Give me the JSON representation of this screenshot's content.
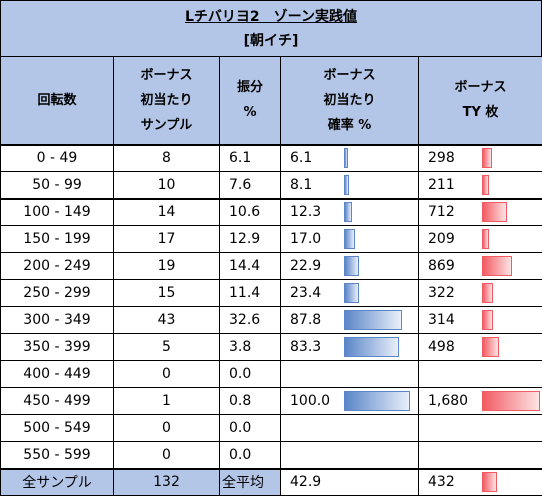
{
  "header": {
    "title": "Lチバリヨ2　ゾーン実践値",
    "subtitle": "[朝イチ]"
  },
  "columns": {
    "range": "回転数",
    "samples": [
      "ボーナス",
      "初当たり",
      "サンプル"
    ],
    "dist": [
      "振分",
      "%"
    ],
    "rate": [
      "ボーナス",
      "初当たり",
      "確率 %"
    ],
    "ty": [
      "ボーナス",
      "TY 枚"
    ]
  },
  "rows": [
    {
      "range": "0 - 49",
      "samples": "8",
      "dist": "6.1",
      "rate": "6.1",
      "rate_value": 6.1,
      "ty": "298",
      "ty_value": 298
    },
    {
      "range": "50 - 99",
      "samples": "10",
      "dist": "7.6",
      "rate": "8.1",
      "rate_value": 8.1,
      "ty": "211",
      "ty_value": 211
    },
    {
      "range": "100 - 149",
      "samples": "14",
      "dist": "10.6",
      "rate": "12.3",
      "rate_value": 12.3,
      "ty": "712",
      "ty_value": 712
    },
    {
      "range": "150 - 199",
      "samples": "17",
      "dist": "12.9",
      "rate": "17.0",
      "rate_value": 17.0,
      "ty": "209",
      "ty_value": 209
    },
    {
      "range": "200 - 249",
      "samples": "19",
      "dist": "14.4",
      "rate": "22.9",
      "rate_value": 22.9,
      "ty": "869",
      "ty_value": 869
    },
    {
      "range": "250 - 299",
      "samples": "15",
      "dist": "11.4",
      "rate": "23.4",
      "rate_value": 23.4,
      "ty": "322",
      "ty_value": 322
    },
    {
      "range": "300 - 349",
      "samples": "43",
      "dist": "32.6",
      "rate": "87.8",
      "rate_value": 87.8,
      "ty": "314",
      "ty_value": 314
    },
    {
      "range": "350 - 399",
      "samples": "5",
      "dist": "3.8",
      "rate": "83.3",
      "rate_value": 83.3,
      "ty": "498",
      "ty_value": 498
    },
    {
      "range": "400 - 449",
      "samples": "0",
      "dist": "0.0",
      "rate": "",
      "rate_value": null,
      "ty": "",
      "ty_value": null
    },
    {
      "range": "450 - 499",
      "samples": "1",
      "dist": "0.8",
      "rate": "100.0",
      "rate_value": 100.0,
      "ty": "1,680",
      "ty_value": 1680
    },
    {
      "range": "500 - 549",
      "samples": "0",
      "dist": "0.0",
      "rate": "",
      "rate_value": null,
      "ty": "",
      "ty_value": null
    },
    {
      "range": "550 - 599",
      "samples": "0",
      "dist": "0.0",
      "rate": "",
      "rate_value": null,
      "ty": "",
      "ty_value": null
    }
  ],
  "summary": {
    "label": "全サンプル",
    "samples": "132",
    "avg_label": "全平均",
    "rate": "42.9",
    "ty": "432",
    "ty_value": 432
  },
  "colors": {
    "header_bg": "#b4c6e7",
    "rate_bar": "#5b86c8",
    "ty_bar": "#f25b63"
  }
}
